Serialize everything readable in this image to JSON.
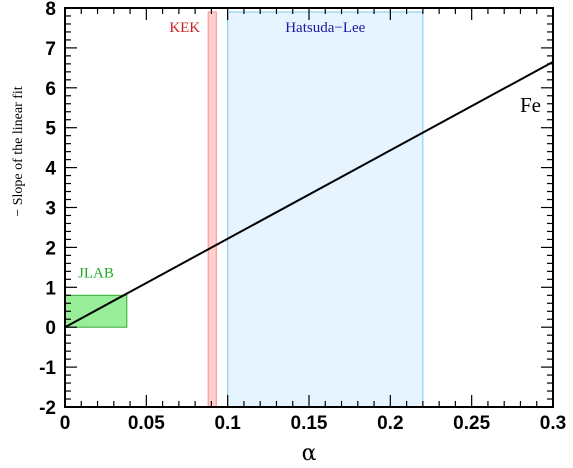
{
  "chart_data": {
    "type": "line",
    "title": "",
    "xlabel": "α",
    "ylabel": "− Slope of the linear fit",
    "xlim": [
      0,
      0.3
    ],
    "ylim": [
      -2,
      8
    ],
    "x_ticks": [
      "0",
      "0.05",
      "0.1",
      "0.15",
      "0.2",
      "0.25",
      "0.3"
    ],
    "y_ticks": [
      "-2",
      "-1",
      "0",
      "1",
      "2",
      "3",
      "4",
      "5",
      "6",
      "7",
      "8"
    ],
    "grid": false,
    "series": [
      {
        "name": "Fe",
        "x": [
          0,
          0.3
        ],
        "y": [
          0.0,
          6.65
        ],
        "color": "#000000"
      }
    ],
    "regions": [
      {
        "label": "JLAB",
        "x": [
          0,
          0.038
        ],
        "y": [
          0,
          0.8
        ],
        "fill": "#99ee99",
        "stroke": "#33aa33",
        "text_color": "#22aa22"
      },
      {
        "label": "KEK",
        "x": [
          0.088,
          0.093
        ],
        "y": [
          -2,
          7.9
        ],
        "fill": "#ffd0d0",
        "stroke": "#ff8888",
        "text_color": "#cc2222"
      },
      {
        "label": "Hatsuda−Lee",
        "x": [
          0.1,
          0.22
        ],
        "y": [
          -2,
          7.9
        ],
        "fill": "#e6f4ff",
        "stroke": "#77ccee",
        "text_color": "#1a1aa0"
      }
    ]
  }
}
